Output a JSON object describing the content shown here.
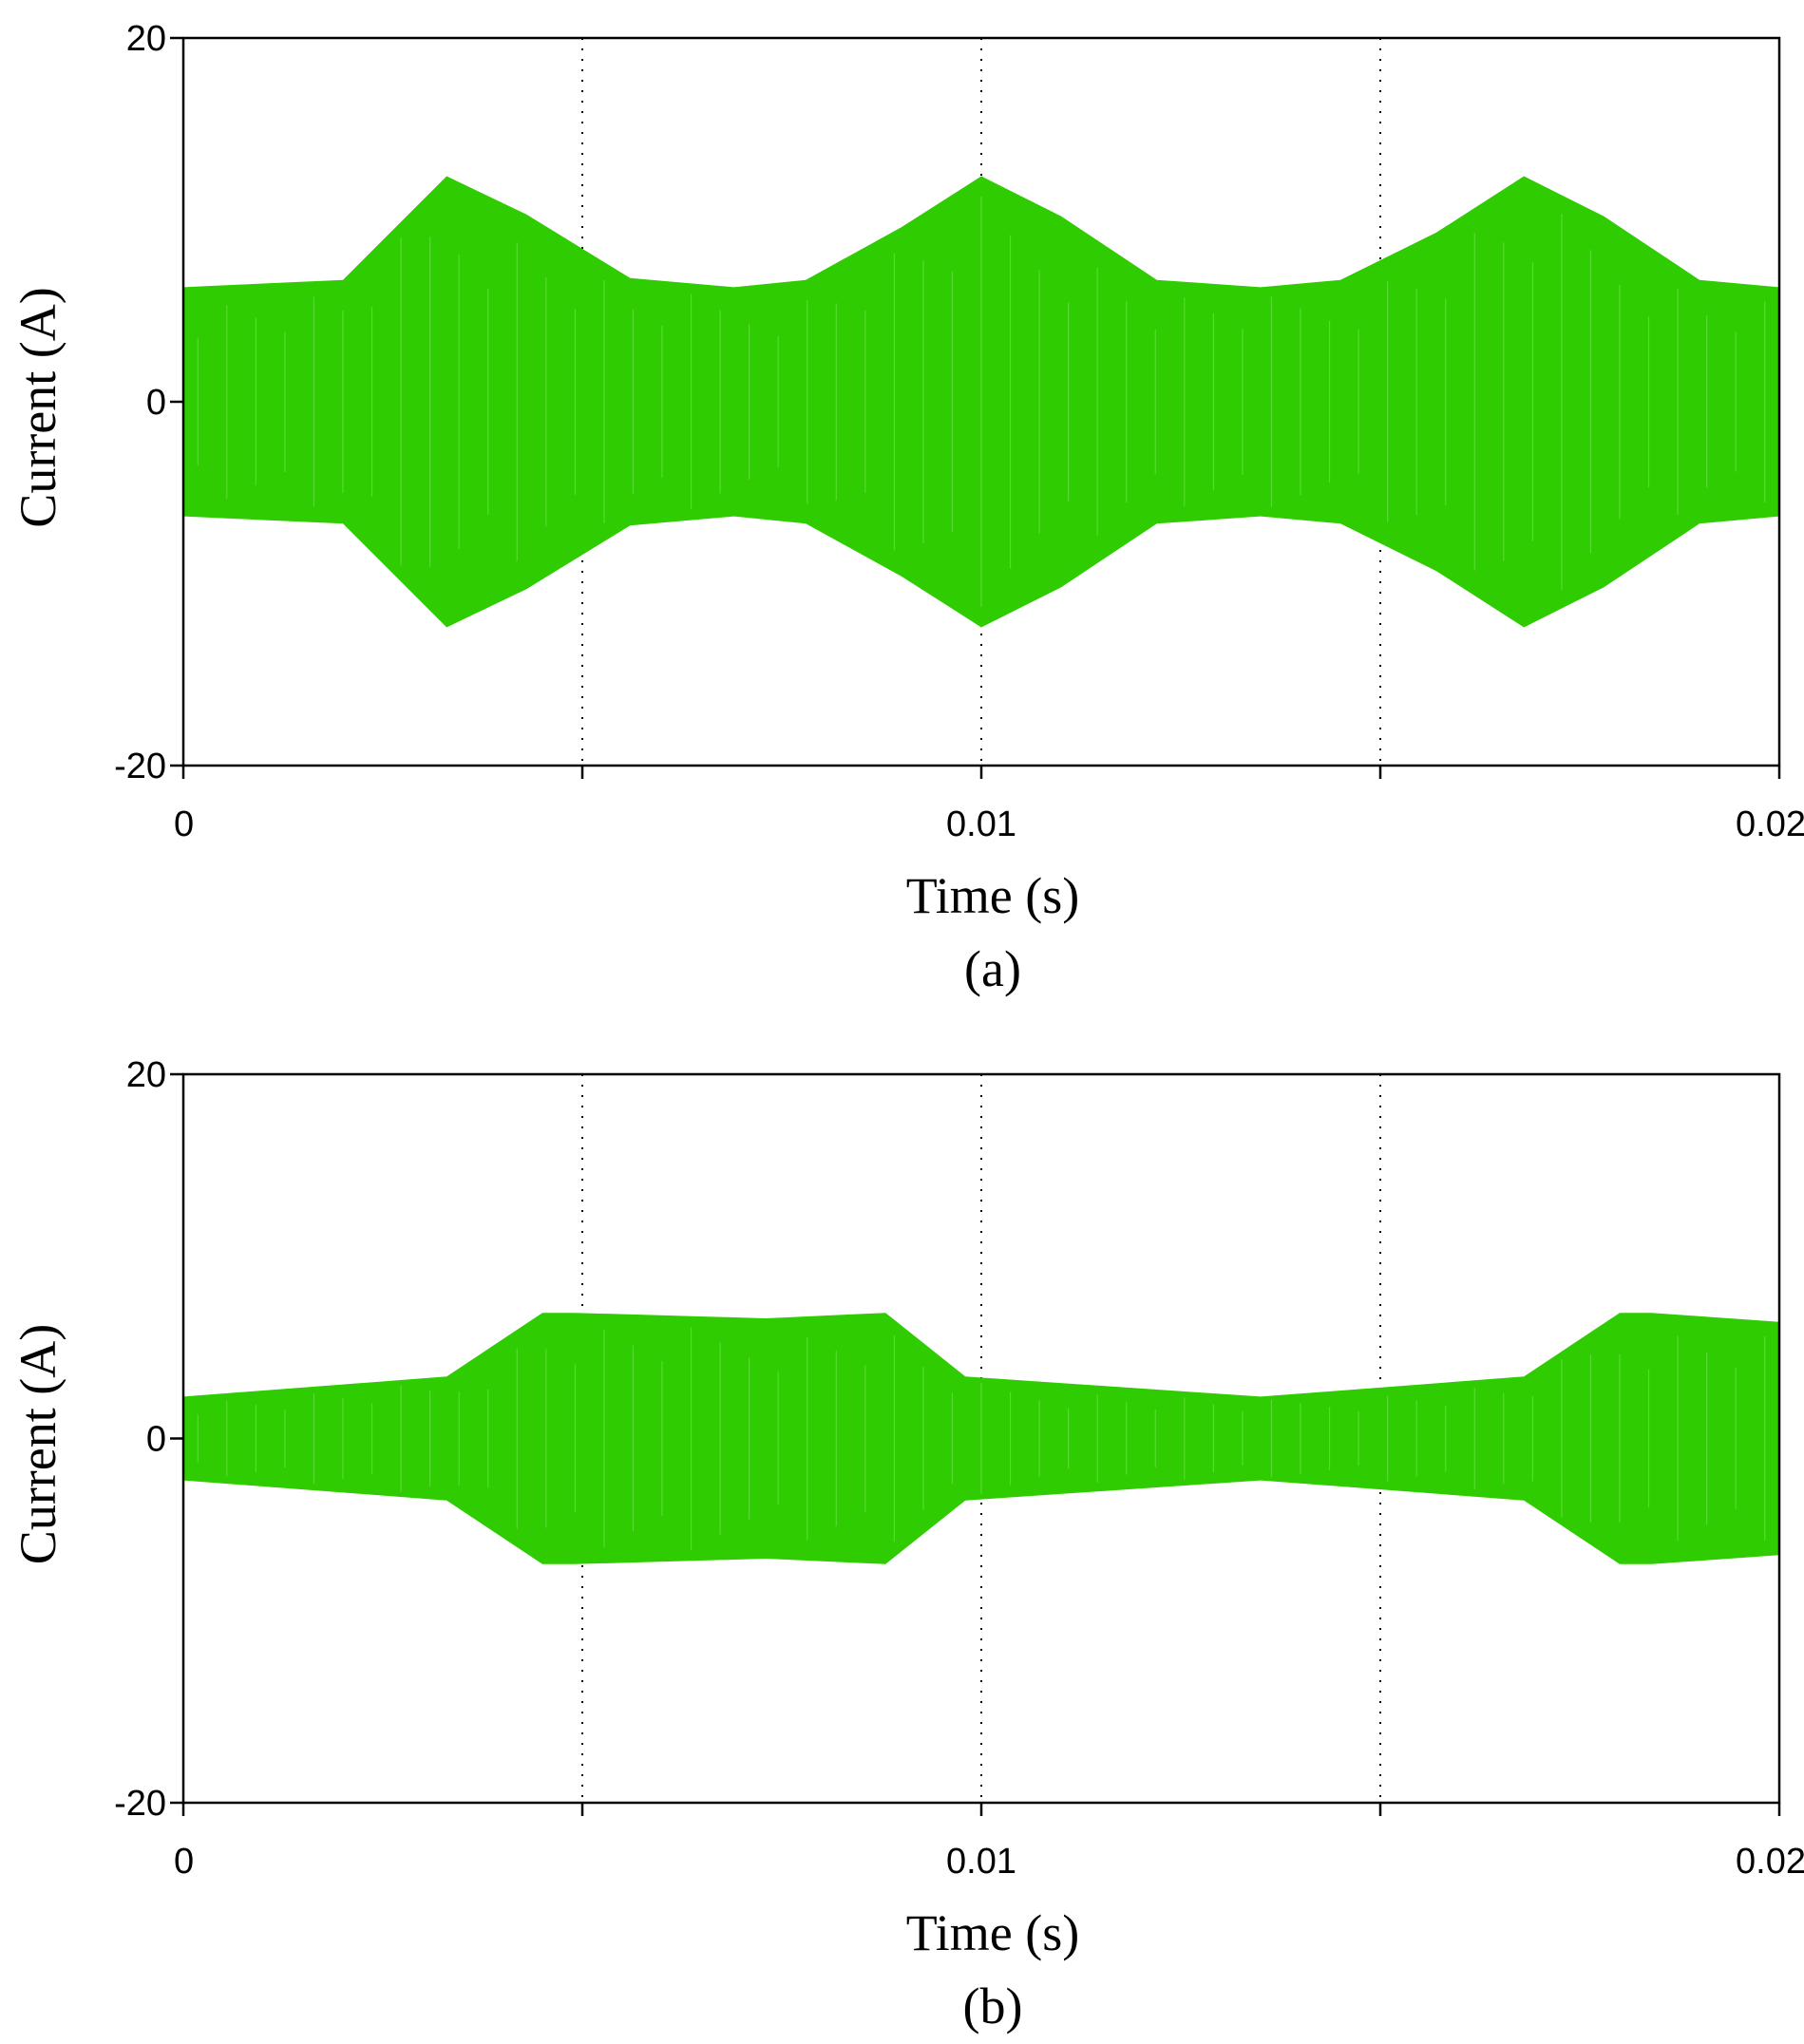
{
  "figure": {
    "trace_color": "#2ecc00",
    "frame_color": "#000000",
    "grid_style": "dotted vertical"
  },
  "chart_data": [
    {
      "type": "area",
      "caption": "(a)",
      "xlabel": "Time (s)",
      "ylabel": "Current (A)",
      "xlim": [
        0,
        0.02
      ],
      "ylim": [
        -20,
        20
      ],
      "x_ticks": [
        0,
        0.005,
        0.01,
        0.015,
        0.02
      ],
      "x_tick_labels": [
        "0",
        "",
        "0.01",
        "",
        "0.02"
      ],
      "y_ticks": [
        -20,
        0,
        20
      ],
      "y_tick_labels": [
        "-20",
        "0",
        "20"
      ],
      "grid_x": [
        0.005,
        0.01,
        0.015
      ],
      "envelope": {
        "x": [
          0,
          0.001,
          0.002,
          0.0033,
          0.0043,
          0.0056,
          0.0069,
          0.0078,
          0.009,
          0.01,
          0.011,
          0.0122,
          0.0135,
          0.0145,
          0.0157,
          0.0168,
          0.0178,
          0.019,
          0.02
        ],
        "upper": [
          6.3,
          6.5,
          6.7,
          12.4,
          10.3,
          6.8,
          6.3,
          6.7,
          9.6,
          12.4,
          10.2,
          6.7,
          6.3,
          6.7,
          9.3,
          12.4,
          10.2,
          6.7,
          6.3
        ],
        "lower": [
          -6.3,
          -6.5,
          -6.7,
          -12.4,
          -10.3,
          -6.8,
          -6.3,
          -6.7,
          -9.6,
          -12.4,
          -10.2,
          -6.7,
          -6.3,
          -6.7,
          -9.3,
          -12.4,
          -10.2,
          -6.7,
          -6.3
        ]
      }
    },
    {
      "type": "area",
      "caption": "(b)",
      "xlabel": "Time (s)",
      "ylabel": "Current (A)",
      "xlim": [
        0,
        0.02
      ],
      "ylim": [
        -20,
        20
      ],
      "x_ticks": [
        0,
        0.005,
        0.01,
        0.015,
        0.02
      ],
      "x_tick_labels": [
        "0",
        "",
        "0.01",
        "",
        "0.02"
      ],
      "y_ticks": [
        -20,
        0,
        20
      ],
      "y_tick_labels": [
        "-20",
        "0",
        "20"
      ],
      "grid_x": [
        0.005,
        0.01,
        0.015
      ],
      "envelope": {
        "x": [
          0,
          0.0033,
          0.0045,
          0.0049,
          0.0073,
          0.0088,
          0.0098,
          0.0135,
          0.0168,
          0.018,
          0.0184,
          0.02
        ],
        "upper": [
          2.3,
          3.4,
          6.9,
          6.9,
          6.6,
          6.9,
          3.4,
          2.3,
          3.4,
          6.9,
          6.9,
          6.4
        ],
        "lower": [
          -2.3,
          -3.4,
          -6.9,
          -6.9,
          -6.6,
          -6.9,
          -3.4,
          -2.3,
          -3.4,
          -6.9,
          -6.9,
          -6.4
        ]
      }
    }
  ]
}
